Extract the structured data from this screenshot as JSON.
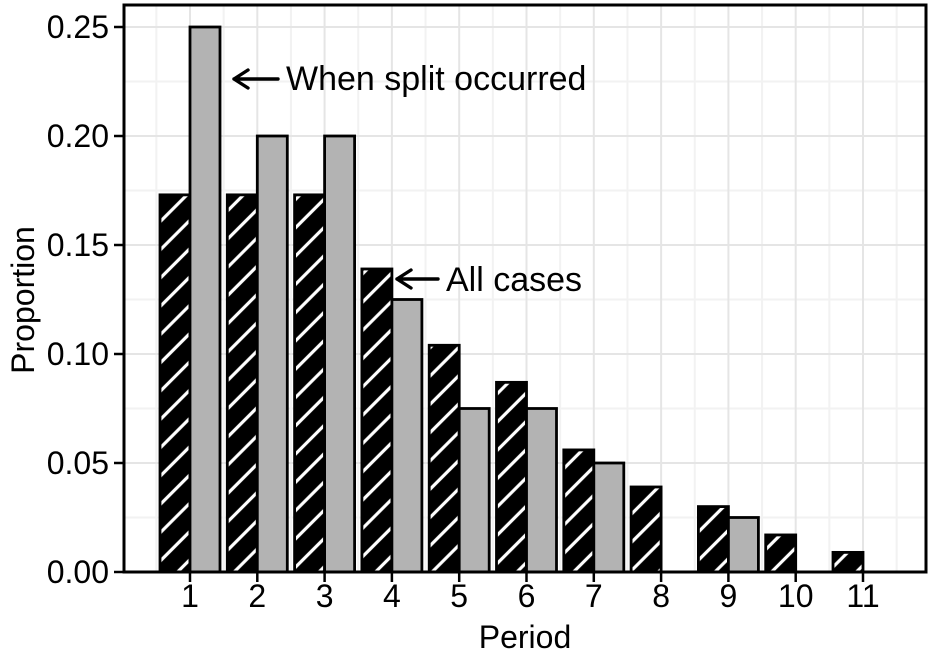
{
  "chart_data": {
    "type": "bar",
    "title": "",
    "xlabel": "Period",
    "ylabel": "Proportion",
    "categories": [
      "1",
      "2",
      "3",
      "4",
      "5",
      "6",
      "7",
      "8",
      "9",
      "10",
      "11"
    ],
    "series": [
      {
        "name": "All cases",
        "style": "black-white-diagonal-hatch",
        "values": [
          0.173,
          0.173,
          0.173,
          0.139,
          0.104,
          0.087,
          0.056,
          0.039,
          0.03,
          0.017,
          0.009
        ]
      },
      {
        "name": "When split occurred",
        "style": "gray-solid",
        "values": [
          0.25,
          0.2,
          0.2,
          0.125,
          0.075,
          0.075,
          0.05,
          0,
          0.025,
          0,
          0
        ]
      }
    ],
    "ylim": [
      0,
      0.26
    ],
    "yticks": [
      0,
      0.05,
      0.1,
      0.15,
      0.2,
      0.25
    ],
    "ytick_labels": [
      "0.00",
      "0.05",
      "0.10",
      "0.15",
      "0.20",
      "0.25"
    ],
    "grid": "major-and-minor-both-axes",
    "legend_position": "none",
    "annotations": [
      {
        "text": "When split occurred",
        "arrow_direction": "left",
        "points_to": "gray bar, period 1"
      },
      {
        "text": "All cases",
        "arrow_direction": "left",
        "points_to": "black hatched bar, period 4"
      }
    ],
    "colors": {
      "bar_gray_fill": "#b3b3b3",
      "bar_black_fill": "#000000",
      "bar_hatch_stripe": "#ffffff",
      "bar_stroke": "#000000",
      "grid_major": "#e5e5e5",
      "grid_minor": "#f2f2f2",
      "panel_border": "#000000"
    }
  }
}
